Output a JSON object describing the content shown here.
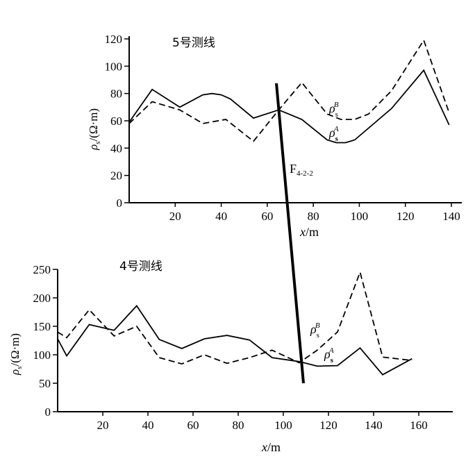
{
  "chart_data": [
    {
      "type": "line",
      "title": "5号测线",
      "xlabel_var": "x",
      "xlabel_unit": "/m",
      "ylabel": "ρs/(Ω·m)",
      "xlim": [
        0,
        140
      ],
      "ylim": [
        0,
        120
      ],
      "xticks": [
        20,
        40,
        60,
        80,
        100,
        120,
        140
      ],
      "yticks": [
        0,
        20,
        40,
        60,
        80,
        100,
        120
      ],
      "series": [
        {
          "name": "ρsA",
          "style": "solid",
          "x": [
            0,
            10,
            22,
            32,
            36,
            40,
            44,
            54,
            65,
            75,
            86,
            90,
            94,
            98,
            114,
            128,
            139
          ],
          "y": [
            59,
            83,
            70,
            79,
            80,
            79,
            76,
            62,
            68,
            61,
            46,
            44,
            44,
            46,
            69,
            97,
            57
          ]
        },
        {
          "name": "ρsB",
          "style": "dashed",
          "x": [
            0,
            10,
            22,
            32,
            42,
            54,
            65,
            75,
            86,
            92,
            98,
            104,
            114,
            128,
            139
          ],
          "y": [
            58,
            74,
            68,
            58,
            61,
            45,
            68,
            88,
            65,
            61,
            61,
            65,
            82,
            119,
            66
          ]
        }
      ],
      "series_labels": {
        "A": {
          "base": "ρ",
          "sub": "s",
          "sup": "A"
        },
        "B": {
          "base": "ρ",
          "sub": "s",
          "sup": "B"
        }
      }
    },
    {
      "type": "line",
      "title": "4号测线",
      "xlabel_var": "x",
      "xlabel_unit": "/m",
      "ylabel": "ρs/(Ω·m)",
      "xlim": [
        0,
        170
      ],
      "ylim": [
        0,
        250
      ],
      "xticks": [
        20,
        40,
        60,
        80,
        100,
        120,
        140,
        160
      ],
      "yticks": [
        0,
        50,
        100,
        150,
        200,
        250
      ],
      "series": [
        {
          "name": "ρsA",
          "style": "solid",
          "x": [
            0,
            4,
            14,
            25,
            35,
            45,
            55,
            65,
            75,
            85,
            95,
            107,
            115,
            124,
            134,
            144,
            157
          ],
          "y": [
            128,
            98,
            153,
            143,
            186,
            127,
            111,
            128,
            134,
            126,
            95,
            88,
            80,
            81,
            112,
            65,
            93
          ]
        },
        {
          "name": "ρsB",
          "style": "dashed",
          "x": [
            0,
            4,
            14,
            25,
            35,
            45,
            55,
            65,
            75,
            85,
            95,
            107,
            115,
            124,
            134,
            144,
            157
          ],
          "y": [
            140,
            130,
            179,
            133,
            150,
            95,
            84,
            100,
            85,
            95,
            108,
            86,
            108,
            140,
            245,
            96,
            90
          ]
        }
      ],
      "series_labels": {
        "A": {
          "base": "ρ",
          "sub": "s",
          "sup": "A"
        },
        "B": {
          "base": "ρ",
          "sub": "s",
          "sup": "B"
        }
      }
    }
  ],
  "annotations": {
    "fault_label_base": "F",
    "fault_label_sub": "4-2-2"
  }
}
